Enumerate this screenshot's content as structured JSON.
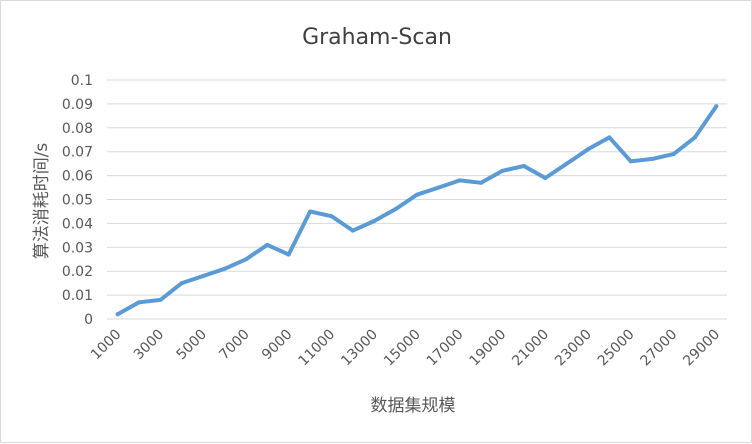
{
  "chart_data": {
    "type": "line",
    "title": "Graham-Scan",
    "xlabel": "数据集规模",
    "ylabel": "算法消耗时间/s",
    "ylim": [
      0,
      0.1
    ],
    "yticks": [
      "0",
      "0.01",
      "0.02",
      "0.03",
      "0.04",
      "0.05",
      "0.06",
      "0.07",
      "0.08",
      "0.09",
      "0.1"
    ],
    "categories": [
      1000,
      2000,
      3000,
      4000,
      5000,
      6000,
      7000,
      8000,
      9000,
      10000,
      11000,
      12000,
      13000,
      14000,
      15000,
      16000,
      17000,
      18000,
      19000,
      20000,
      21000,
      22000,
      23000,
      24000,
      25000,
      26000,
      27000,
      28000,
      29000
    ],
    "xtick_labels": [
      "1000",
      "3000",
      "5000",
      "7000",
      "9000",
      "11000",
      "13000",
      "15000",
      "17000",
      "19000",
      "21000",
      "23000",
      "25000",
      "27000",
      "29000"
    ],
    "series": [
      {
        "values": [
          0.002,
          0.007,
          0.008,
          0.015,
          0.018,
          0.021,
          0.025,
          0.031,
          0.027,
          0.045,
          0.043,
          0.037,
          0.041,
          0.046,
          0.052,
          0.055,
          0.058,
          0.057,
          0.062,
          0.064,
          0.059,
          0.065,
          0.071,
          0.076,
          0.066,
          0.067,
          0.069,
          0.076,
          0.089
        ],
        "color": "#5b9bd5"
      }
    ],
    "grid": true,
    "gridline_color": "#d9d9d9",
    "legend": "none"
  }
}
